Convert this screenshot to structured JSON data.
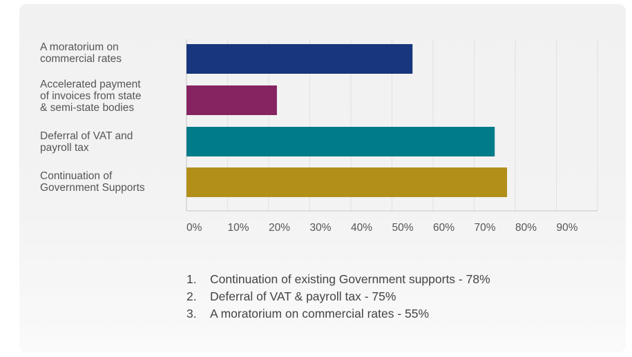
{
  "chart_data": {
    "type": "bar",
    "orientation": "horizontal",
    "categories": [
      "A moratorium on commercial rates",
      "Accelerated payment of invoices from state & semi-state bodies",
      "Deferral of VAT and payroll tax",
      "Continuation of Government Supports"
    ],
    "category_lines": [
      [
        "A moratorium on",
        "commercial rates"
      ],
      [
        "Accelerated payment",
        "of invoices from state",
        "& semi-state bodies"
      ],
      [
        "Deferral of VAT and",
        "payroll tax"
      ],
      [
        "Continuation of",
        "Government Supports"
      ]
    ],
    "values": [
      55,
      22,
      75,
      78
    ],
    "colors": [
      "#17367d",
      "#862462",
      "#007b89",
      "#b28f19"
    ],
    "xticks": [
      "0%",
      "10%",
      "20%",
      "30%",
      "40%",
      "50%",
      "60%",
      "70%",
      "80%",
      "90%"
    ],
    "xlim": [
      0,
      100
    ],
    "grid": true,
    "legend": "none"
  },
  "ranking": [
    {
      "num": "1.",
      "text": "Continuation of existing Government supports - 78%"
    },
    {
      "num": "2.",
      "text": "Deferral of VAT & payroll tax - 75%"
    },
    {
      "num": "3.",
      "text": "A moratorium on commercial rates - 55%"
    }
  ]
}
